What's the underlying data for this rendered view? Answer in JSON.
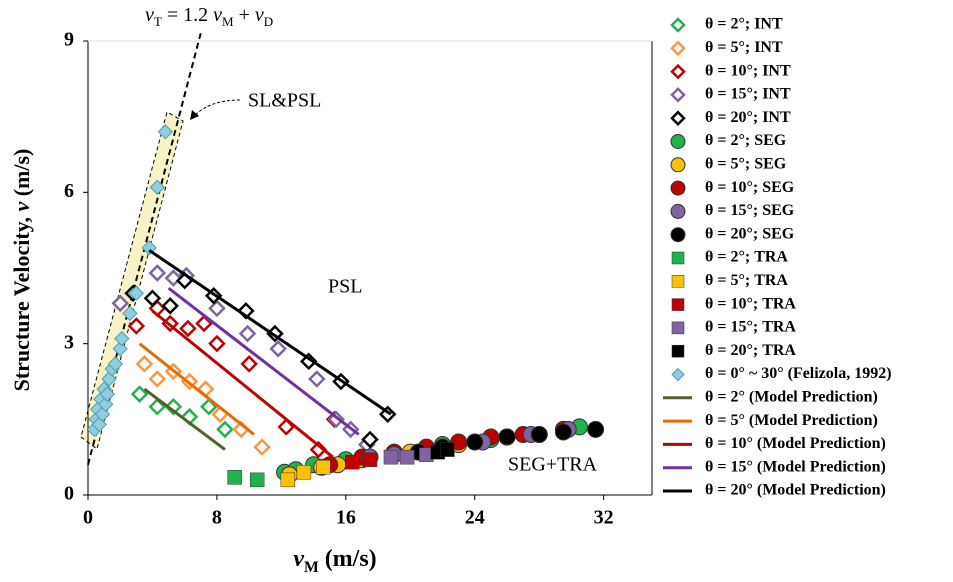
{
  "chart_data": {
    "type": "scatter",
    "equation": [
      "v",
      "T",
      " = 1.2 ",
      "v",
      "M",
      " + ",
      "v",
      "D"
    ],
    "x_label": [
      "v",
      "M",
      " (m/s)"
    ],
    "y_label": [
      "Structure Velocity, ",
      "v",
      " (m/s)"
    ],
    "annotations": [
      "SL&PSL",
      "PSL",
      "SEG+TRA"
    ],
    "xlim": [
      0,
      35
    ],
    "ylim": [
      0,
      9
    ],
    "xticks": [
      0,
      8,
      16,
      24,
      32
    ],
    "yticks": [
      0,
      3,
      6,
      9
    ],
    "series": [
      {
        "name": "θ = 2°; INT",
        "color": "#22b14c",
        "marker": "diamond-open",
        "x": [
          3.2,
          4.3,
          5.3,
          6.3,
          7.5,
          8.5
        ],
        "values": [
          2.0,
          1.75,
          1.75,
          1.55,
          1.75,
          1.3
        ]
      },
      {
        "name": "θ = 5°; INT",
        "color": "#f79646",
        "marker": "diamond-open",
        "x": [
          3.5,
          4.3,
          5.3,
          6.3,
          7.3,
          8.2,
          9.5,
          10.8
        ],
        "values": [
          2.6,
          2.3,
          2.45,
          2.25,
          2.1,
          1.6,
          1.3,
          0.95
        ]
      },
      {
        "name": "θ = 10°; INT",
        "color": "#c00000",
        "marker": "diamond-open",
        "x": [
          3,
          4.3,
          5.1,
          6.2,
          7.2,
          8,
          10,
          12.3,
          14.3,
          15.3
        ],
        "values": [
          3.35,
          3.7,
          3.4,
          3.3,
          3.4,
          3.0,
          2.6,
          1.35,
          0.9,
          1.5
        ]
      },
      {
        "name": "θ = 15°; INT",
        "color": "#8064a2",
        "marker": "diamond-open",
        "x": [
          2,
          4.3,
          5.3,
          6.1,
          8,
          9.9,
          11.8,
          14.2,
          15.4,
          16.3,
          17.3
        ],
        "values": [
          3.8,
          4.4,
          4.3,
          4.35,
          3.7,
          3.2,
          2.9,
          2.3,
          1.5,
          1.3,
          1.0
        ]
      },
      {
        "name": "θ = 20°; INT",
        "color": "#000000",
        "marker": "diamond-open",
        "x": [
          2.8,
          4,
          5.1,
          6,
          7.8,
          9.8,
          11.6,
          13.7,
          15.7,
          17.5,
          18.6
        ],
        "values": [
          4.0,
          3.9,
          3.75,
          4.25,
          3.95,
          3.65,
          3.2,
          2.65,
          2.25,
          1.1,
          1.6
        ]
      },
      {
        "name": "θ = 2°; SEG",
        "color": "#22b14c",
        "marker": "circle",
        "x": [
          12.2,
          12.9,
          14,
          16,
          19,
          22,
          25,
          28,
          30.5
        ],
        "values": [
          0.45,
          0.5,
          0.6,
          0.7,
          0.8,
          1.0,
          1.1,
          1.2,
          1.35
        ]
      },
      {
        "name": "θ = 5°; SEG",
        "color": "#ffc000",
        "marker": "circle",
        "x": [
          12.5,
          14.5,
          15.5,
          17,
          20,
          23,
          26,
          28
        ],
        "values": [
          0.4,
          0.55,
          0.6,
          0.7,
          0.85,
          1.0,
          1.15,
          1.2
        ]
      },
      {
        "name": "θ = 10°; SEG",
        "color": "#c00000",
        "marker": "circle",
        "x": [
          15,
          17,
          19,
          21,
          23,
          25,
          27,
          29.5
        ],
        "values": [
          0.6,
          0.75,
          0.85,
          0.95,
          1.05,
          1.15,
          1.2,
          1.3
        ]
      },
      {
        "name": "θ = 15°; SEG",
        "color": "#8064a2",
        "marker": "circle",
        "x": [
          17.5,
          19,
          22,
          24.5,
          26,
          27.5,
          29.8
        ],
        "values": [
          0.75,
          0.8,
          0.95,
          1.05,
          1.15,
          1.2,
          1.3
        ]
      },
      {
        "name": "θ = 20°; SEG",
        "color": "#000000",
        "marker": "circle",
        "x": [
          20.5,
          22,
          24,
          26,
          28,
          29.5,
          31.5
        ],
        "values": [
          0.85,
          0.95,
          1.05,
          1.15,
          1.2,
          1.25,
          1.3
        ]
      },
      {
        "name": "θ = 2°; TRA",
        "color": "#22b14c",
        "marker": "square",
        "x": [
          9.1,
          10.5
        ],
        "values": [
          0.35,
          0.3
        ]
      },
      {
        "name": "θ = 5°; TRA",
        "color": "#ffc000",
        "marker": "square",
        "x": [
          12.4,
          13.4,
          14.6
        ],
        "values": [
          0.3,
          0.45,
          0.55
        ]
      },
      {
        "name": "θ = 10°; TRA",
        "color": "#c00000",
        "marker": "square",
        "x": [
          16.4,
          17.5
        ],
        "values": [
          0.65,
          0.7
        ]
      },
      {
        "name": "θ = 15°; TRA",
        "color": "#8064a2",
        "marker": "square",
        "x": [
          18.8,
          19.8,
          21
        ],
        "values": [
          0.75,
          0.75,
          0.8
        ]
      },
      {
        "name": "θ = 20°; TRA",
        "color": "#000000",
        "marker": "square",
        "x": [
          21.7,
          22.3
        ],
        "values": [
          0.85,
          0.9
        ]
      },
      {
        "name": "θ = 0° ~ 30°  (Felizola, 1992)",
        "color": "#93cddd",
        "marker": "diamond",
        "x": [
          0.4,
          0.5,
          0.6,
          0.7,
          0.8,
          0.9,
          1,
          1.1,
          1.2,
          1.3,
          1.5,
          1.7,
          2,
          2.1,
          2.6,
          3,
          3.8,
          4.3,
          4.8
        ],
        "values": [
          1.3,
          1.5,
          1.7,
          1.4,
          1.9,
          1.6,
          2.1,
          1.8,
          2.0,
          2.3,
          2.5,
          2.6,
          2.9,
          3.1,
          3.6,
          4.0,
          4.9,
          6.1,
          7.2
        ]
      },
      {
        "name": "θ = 2° (Model Prediction)",
        "color": "#4f6228",
        "marker": "line",
        "x": [
          3.5,
          8.5
        ],
        "values": [
          2.1,
          0.9
        ]
      },
      {
        "name": "θ = 5° (Model Prediction)",
        "color": "#e36c09",
        "marker": "line",
        "x": [
          3.2,
          10.3
        ],
        "values": [
          3.0,
          1.2
        ]
      },
      {
        "name": "θ = 10° (Model Prediction)",
        "color": "#c00000",
        "marker": "line",
        "x": [
          4,
          15.2
        ],
        "values": [
          3.65,
          0.75
        ]
      },
      {
        "name": "θ = 15° (Model Prediction)",
        "color": "#7030a0",
        "marker": "line",
        "x": [
          5,
          16.8
        ],
        "values": [
          4.1,
          1.2
        ]
      },
      {
        "name": "θ = 20° (Model Prediction)",
        "color": "#000000",
        "marker": "line",
        "x": [
          3.8,
          18.8
        ],
        "values": [
          4.85,
          1.6
        ]
      }
    ],
    "fit_line": {
      "slope": 1.2,
      "intercept": 0.6
    }
  }
}
